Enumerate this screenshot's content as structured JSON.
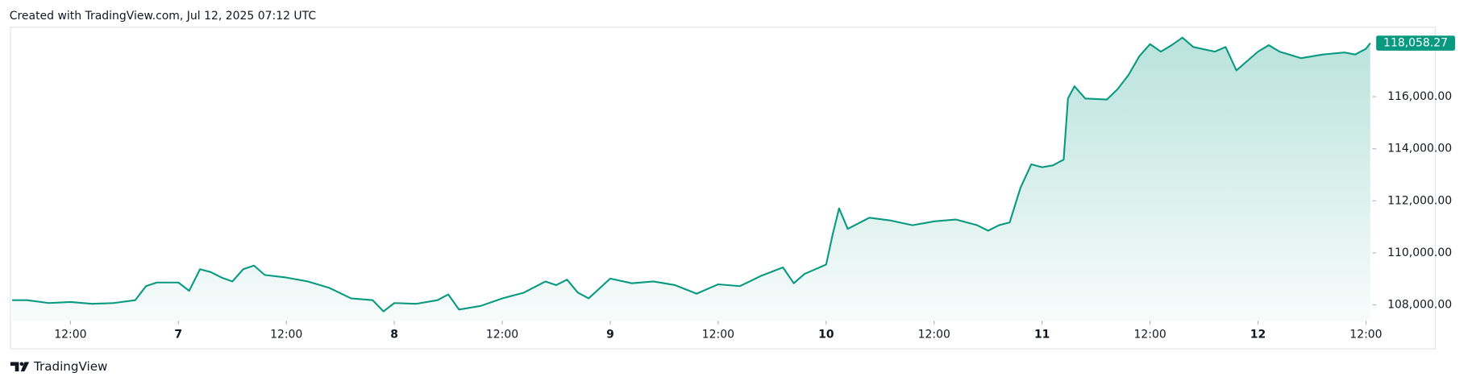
{
  "chart_data": {
    "type": "area",
    "caption": "Created with TradingView.com, Jul 12, 2025 07:12 UTC",
    "brand": "TradingView",
    "color": "#089981",
    "x": [
      6.23,
      6.3,
      6.4,
      6.5,
      6.6,
      6.7,
      6.8,
      6.85,
      6.9,
      7.0,
      7.05,
      7.1,
      7.15,
      7.2,
      7.25,
      7.3,
      7.35,
      7.4,
      7.5,
      7.6,
      7.7,
      7.8,
      7.9,
      7.95,
      8.0,
      8.1,
      8.2,
      8.25,
      8.3,
      8.4,
      8.5,
      8.6,
      8.7,
      8.75,
      8.8,
      8.85,
      8.9,
      9.0,
      9.1,
      9.2,
      9.3,
      9.4,
      9.5,
      9.6,
      9.7,
      9.8,
      9.85,
      9.9,
      10.0,
      10.03,
      10.06,
      10.1,
      10.2,
      10.3,
      10.4,
      10.5,
      10.6,
      10.7,
      10.75,
      10.8,
      10.85,
      10.9,
      10.95,
      11.0,
      11.05,
      11.1,
      11.12,
      11.15,
      11.2,
      11.3,
      11.35,
      11.4,
      11.45,
      11.5,
      11.55,
      11.6,
      11.65,
      11.7,
      11.8,
      11.85,
      11.9,
      11.95,
      12.0,
      12.05,
      12.1,
      12.2,
      12.3,
      12.4,
      12.45,
      12.5,
      12.52
    ],
    "values": [
      108180,
      108180,
      108070,
      108110,
      108040,
      108070,
      108180,
      108720,
      108860,
      108860,
      108540,
      109370,
      109260,
      109050,
      108900,
      109370,
      109510,
      109150,
      109050,
      108900,
      108650,
      108250,
      108180,
      107750,
      108070,
      108040,
      108180,
      108400,
      107820,
      107960,
      108250,
      108470,
      108900,
      108760,
      108970,
      108470,
      108250,
      109010,
      108830,
      108900,
      108760,
      108430,
      108790,
      108720,
      109120,
      109440,
      108830,
      109190,
      109550,
      110700,
      111710,
      110920,
      111350,
      111240,
      111060,
      111210,
      111280,
      111060,
      110850,
      111060,
      111170,
      112500,
      113400,
      113290,
      113360,
      113580,
      115930,
      116400,
      115930,
      115890,
      116290,
      116830,
      117550,
      118020,
      117730,
      117980,
      118270,
      117910,
      117730,
      117910,
      117010,
      117370,
      117730,
      117980,
      117730,
      117480,
      117620,
      117700,
      117620,
      117840,
      118058.27
    ],
    "last_label": "118,058.27",
    "xlim": [
      6.222,
      12.53
    ],
    "ylim": [
      107390,
      118670
    ],
    "xticks": [
      {
        "value": 6.5,
        "label": "12:00"
      },
      7,
      {
        "value": 7.5,
        "label": "12:00"
      },
      8,
      {
        "value": 8.5,
        "label": "12:00"
      },
      9,
      {
        "value": 9.5,
        "label": "12:00"
      },
      10,
      {
        "value": 10.5,
        "label": "12:00"
      },
      11,
      {
        "value": 11.5,
        "label": "12:00"
      },
      12,
      {
        "value": 12.5,
        "label": "12:00"
      }
    ],
    "yticks": [
      {
        "value": 108000,
        "label": "108,000.00"
      },
      {
        "value": 110000,
        "label": "110,000.00"
      },
      {
        "value": 112000,
        "label": "112,000.00"
      },
      {
        "value": 114000,
        "label": "114,000.00"
      },
      {
        "value": 116000,
        "label": "116,000.00"
      }
    ],
    "grid": false
  }
}
